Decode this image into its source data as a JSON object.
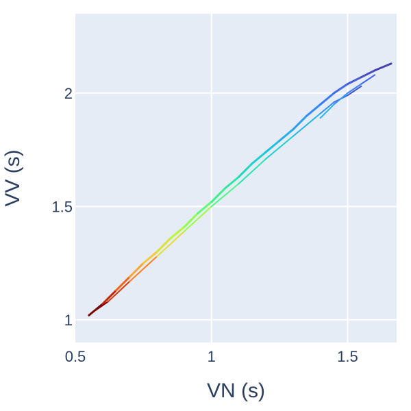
{
  "chart_data": {
    "type": "line",
    "xlabel": "VN (s)",
    "ylabel": "VV (s)",
    "xlim": [
      0.5,
      1.68
    ],
    "ylim": [
      0.9,
      2.35
    ],
    "xticks": [
      0.5,
      1,
      1.5
    ],
    "xtick_labels": [
      "0.5",
      "1",
      "1.5"
    ],
    "yticks": [
      1,
      1.5,
      2
    ],
    "ytick_labels": [
      "1",
      "1.5",
      "2"
    ],
    "grid": true,
    "legend": "none",
    "colorscale": "turbo (red at short VN through yellow/green to blue at long VN)",
    "plot_bgcolor": "#e5ecf6",
    "gridcolor": "#ffffff",
    "series": [
      {
        "x": [
          0.55,
          0.6,
          0.65,
          0.7,
          0.75,
          0.8,
          0.85,
          0.9,
          0.95,
          1.0,
          1.05,
          1.1,
          1.15,
          1.2,
          1.25,
          1.3,
          1.35,
          1.4,
          1.45,
          1.5,
          1.55,
          1.6,
          1.66
        ],
        "y": [
          1.02,
          1.07,
          1.13,
          1.19,
          1.25,
          1.3,
          1.36,
          1.41,
          1.47,
          1.52,
          1.58,
          1.63,
          1.69,
          1.74,
          1.79,
          1.84,
          1.9,
          1.95,
          2.0,
          2.04,
          2.07,
          2.1,
          2.13
        ],
        "colors": [
          "#7a0403",
          "#c42503",
          "#f36315",
          "#fea331",
          "#f5c73a",
          "#dbe236",
          "#b8f735",
          "#8cff4f",
          "#5dfc73",
          "#3ef08a",
          "#2ee5a5",
          "#1fd6be",
          "#1bcfd4",
          "#1fbfe0",
          "#26aee9",
          "#2e9df1",
          "#3489f9",
          "#3a79ff",
          "#4269e8",
          "#4a5bd3",
          "#4a4ec0",
          "#4745ad",
          "#30123b"
        ]
      },
      {
        "x": [
          0.56,
          0.62,
          0.7,
          0.8,
          0.9,
          1.0,
          1.1,
          1.2,
          1.3,
          1.4,
          1.45,
          1.5,
          1.55
        ],
        "y": [
          1.03,
          1.08,
          1.17,
          1.28,
          1.39,
          1.5,
          1.6,
          1.71,
          1.81,
          1.91,
          1.96,
          1.99,
          2.03
        ],
        "colors": [
          "#7a0403",
          "#d93806",
          "#fb8022",
          "#e1dd37",
          "#9efc42",
          "#4ff685",
          "#2be4ab",
          "#1cd1d2",
          "#23b3e6",
          "#3093f5",
          "#3c6fef",
          "#3e4fd0",
          "#30123b"
        ]
      },
      {
        "x": [
          1.4,
          1.45,
          1.5,
          1.55,
          1.6
        ],
        "y": [
          1.89,
          1.95,
          2.0,
          2.04,
          2.08
        ],
        "colors": [
          "#2bb1e4",
          "#3495f3",
          "#3c7cfd",
          "#4466ed",
          "#4a58d0"
        ]
      }
    ]
  }
}
